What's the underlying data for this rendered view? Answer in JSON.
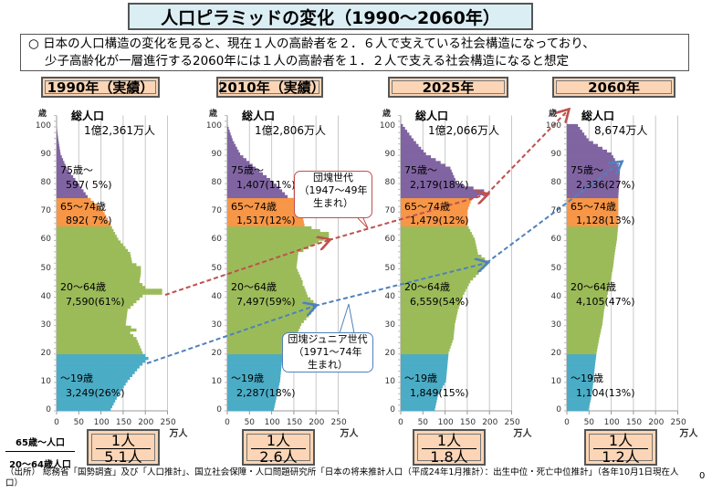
{
  "title": "人口ピラミッドの変化（1990～2060年）",
  "summary": {
    "line1": "○ 日本の人口構造の変化を見ると、現在１人の高齢者を２．６人で支えている社会構造になっており、",
    "line2": "少子高齢化が一層進行する2060年には１人の高齢者を１．２人で支える社会構造になると想定"
  },
  "ratio_label": {
    "numerator": "65歳～人口",
    "denominator": "20～64歳人口"
  },
  "callouts": {
    "dankai": {
      "line1": "団塊世代",
      "line2": "（1947～49年",
      "line3": "生まれ）",
      "color": "#c0504d"
    },
    "dankai_junior": {
      "line1": "団塊ジュニア世代",
      "line2": "（1971～74年",
      "line3": "生まれ）",
      "color": "#4f81bd"
    }
  },
  "source": "（出所） 総務省「国勢調査」及び「人口推計」、国立社会保障・人口問題研究所「日本の将来推計人口（平成24年1月推計）：出生中位・死亡中位推計」（各年10月1日現在人口）",
  "page_number": "0",
  "colors": {
    "age_75_plus": "#8064a2",
    "age_65_74": "#f79646",
    "age_20_64": "#9bbb59",
    "age_0_19": "#4bacc6",
    "header_fill": "#fbd5b5",
    "title_fill": "#dbeef4"
  },
  "chart_data": {
    "type": "bar",
    "subtype": "population-pyramid",
    "y_axis_label": "歳",
    "x_unit": "万人",
    "xlim": [
      0,
      250
    ],
    "ylim": [
      0,
      100
    ],
    "x_ticks": [
      "0",
      "50",
      "100",
      "150",
      "200",
      "250"
    ],
    "y_ticks": [
      "0",
      "10",
      "20",
      "30",
      "40",
      "50",
      "60",
      "70",
      "80",
      "90",
      "100"
    ],
    "grid": true,
    "panels": [
      {
        "year_label": "1990年（実績）",
        "total_label": "総人口",
        "total": "1億2,361万人",
        "ratio": {
          "numerator": "1人",
          "denominator": "5.1人"
        },
        "groups": [
          {
            "label": "75歳～",
            "value": "597( 5%)"
          },
          {
            "label": "65～74歳",
            "value": "892( 7%)"
          },
          {
            "label": "20～64歳",
            "value": "7,590(61%)"
          },
          {
            "label": "～19歳",
            "value": "3,249(26%)"
          }
        ],
        "profile": [
          [
            0,
            122
          ],
          [
            5,
            139
          ],
          [
            10,
            160
          ],
          [
            15,
            187
          ],
          [
            18,
            207
          ],
          [
            19,
            200
          ],
          [
            20,
            194
          ],
          [
            25,
            180
          ],
          [
            27,
            166
          ],
          [
            28,
            180
          ],
          [
            30,
            156
          ],
          [
            35,
            160
          ],
          [
            38,
            180
          ],
          [
            40,
            194
          ],
          [
            41,
            238
          ],
          [
            42,
            238
          ],
          [
            43,
            200
          ],
          [
            45,
            187
          ],
          [
            48,
            190
          ],
          [
            50,
            190
          ],
          [
            52,
            170
          ],
          [
            55,
            166
          ],
          [
            60,
            139
          ],
          [
            64,
            125
          ],
          [
            65,
            122
          ],
          [
            70,
            105
          ],
          [
            75,
            70
          ],
          [
            80,
            47
          ],
          [
            85,
            23
          ],
          [
            90,
            9
          ],
          [
            95,
            4
          ],
          [
            100,
            0
          ]
        ]
      },
      {
        "year_label": "2010年（実績）",
        "total_label": "総人口",
        "total": "1億2,806万人",
        "ratio": {
          "numerator": "1人",
          "denominator": "2.6人"
        },
        "groups": [
          {
            "label": "75歳～",
            "value": "1,407(11%)"
          },
          {
            "label": "65～74歳",
            "value": "1,517(12%)"
          },
          {
            "label": "20～64歳",
            "value": "7,497(59%)"
          },
          {
            "label": "～19歳",
            "value": "2,287(18%)"
          }
        ],
        "profile": [
          [
            0,
            105
          ],
          [
            5,
            112
          ],
          [
            10,
            119
          ],
          [
            15,
            122
          ],
          [
            20,
            126
          ],
          [
            25,
            153
          ],
          [
            30,
            167
          ],
          [
            35,
            195
          ],
          [
            37,
            201
          ],
          [
            40,
            181
          ],
          [
            43,
            174
          ],
          [
            44,
            170
          ],
          [
            45,
            170
          ],
          [
            50,
            156
          ],
          [
            55,
            160
          ],
          [
            58,
            195
          ],
          [
            61,
            229
          ],
          [
            62,
            229
          ],
          [
            64,
            190
          ],
          [
            65,
            174
          ],
          [
            70,
            167
          ],
          [
            74,
            160
          ],
          [
            75,
            136
          ],
          [
            80,
            105
          ],
          [
            85,
            64
          ],
          [
            90,
            29
          ],
          [
            95,
            12
          ],
          [
            100,
            1
          ]
        ]
      },
      {
        "year_label": "2025年",
        "total_label": "総人口",
        "total": "1億2,066万人",
        "ratio": {
          "numerator": "1人",
          "denominator": "1.8人"
        },
        "groups": [
          {
            "label": "75歳～",
            "value": "2,179(18%)"
          },
          {
            "label": "65～74歳",
            "value": "1,479(12%)"
          },
          {
            "label": "20～64歳",
            "value": "6,559(54%)"
          },
          {
            "label": "～19歳",
            "value": "1,849(15%)"
          }
        ],
        "profile": [
          [
            0,
            77
          ],
          [
            5,
            84
          ],
          [
            10,
            102
          ],
          [
            15,
            105
          ],
          [
            20,
            108
          ],
          [
            25,
            119
          ],
          [
            30,
            122
          ],
          [
            35,
            129
          ],
          [
            40,
            140
          ],
          [
            45,
            157
          ],
          [
            50,
            188
          ],
          [
            52,
            198
          ],
          [
            55,
            174
          ],
          [
            60,
            167
          ],
          [
            65,
            150
          ],
          [
            70,
            150
          ],
          [
            74,
            160
          ],
          [
            76,
            188
          ],
          [
            77,
            188
          ],
          [
            79,
            140
          ],
          [
            80,
            126
          ],
          [
            85,
            112
          ],
          [
            90,
            57
          ],
          [
            95,
            29
          ],
          [
            100,
            5
          ]
        ]
      },
      {
        "year_label": "2060年",
        "total_label": "総人口",
        "total": "8,674万人",
        "ratio": {
          "numerator": "1人",
          "denominator": "1.2人"
        },
        "groups": [
          {
            "label": "75歳～",
            "value": "2,336(27%)"
          },
          {
            "label": "65～74歳",
            "value": "1,128(13%)"
          },
          {
            "label": "20～64歳",
            "value": "4,105(47%)"
          },
          {
            "label": "～19歳",
            "value": "1,104(13%)"
          }
        ],
        "profile": [
          [
            0,
            49
          ],
          [
            5,
            56
          ],
          [
            10,
            60
          ],
          [
            15,
            63
          ],
          [
            20,
            67
          ],
          [
            25,
            73
          ],
          [
            30,
            80
          ],
          [
            35,
            84
          ],
          [
            40,
            91
          ],
          [
            45,
            98
          ],
          [
            50,
            104
          ],
          [
            55,
            108
          ],
          [
            60,
            113
          ],
          [
            65,
            116
          ],
          [
            70,
            116
          ],
          [
            75,
            116
          ],
          [
            80,
            118
          ],
          [
            85,
            120
          ],
          [
            90,
            101
          ],
          [
            95,
            49
          ],
          [
            100,
            25
          ]
        ]
      }
    ]
  }
}
